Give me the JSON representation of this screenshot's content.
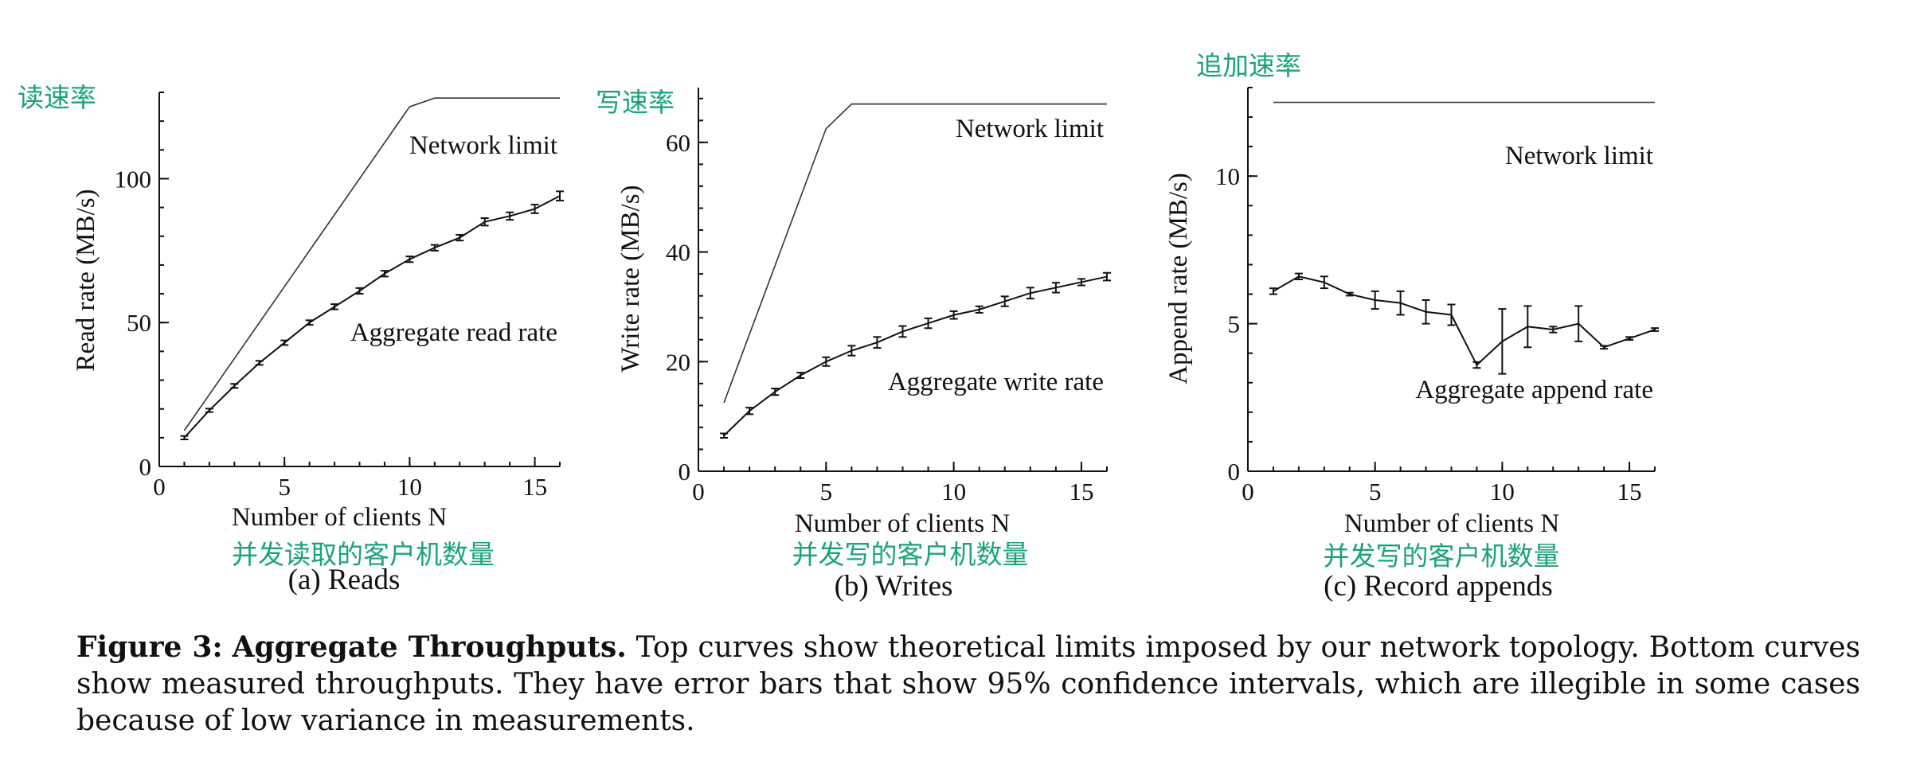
{
  "annotation_color": "#1aa37a",
  "caption": {
    "label": "Figure 3:",
    "title": "Aggregate Throughputs.",
    "body": "Top curves show theoretical limits imposed by our network topology. Bottom curves show measured throughputs. They have error bars that show 95% confidence intervals, which are illegible in some cases because of low variance in measurements."
  },
  "chart_data": [
    {
      "type": "line",
      "subcaption": "(a) Reads",
      "xlabel": "Number of clients N",
      "ylabel": "Read rate (MB/s)",
      "annotation_y": "读速率",
      "annotation_x": "并发读取的客户机数量",
      "xlim": [
        0,
        16
      ],
      "ylim": [
        0,
        130
      ],
      "xticks": [
        0,
        5,
        10,
        15
      ],
      "yticks": [
        0,
        50,
        100
      ],
      "limit_label": "Network limit",
      "measured_label": "Aggregate read rate",
      "limit": {
        "x": [
          1,
          10,
          11,
          16
        ],
        "y": [
          12.5,
          125,
          128,
          128
        ]
      },
      "measured": {
        "x": [
          1,
          2,
          3,
          4,
          5,
          6,
          7,
          8,
          9,
          10,
          11,
          12,
          13,
          14,
          15,
          16
        ],
        "y": [
          10,
          19.5,
          28,
          36,
          43,
          50,
          55.5,
          61,
          67,
          72,
          76,
          79.5,
          85,
          87,
          89.5,
          94
        ],
        "err": [
          0.6,
          0.6,
          0.7,
          0.7,
          0.8,
          0.8,
          0.9,
          1,
          1,
          1,
          1,
          1,
          1.3,
          1.3,
          1.5,
          1.6
        ]
      }
    },
    {
      "type": "line",
      "subcaption": "(b) Writes",
      "xlabel": "Number of clients N",
      "ylabel": "Write rate (MB/s)",
      "annotation_y": "写速率",
      "annotation_x": "并发写的客户机数量",
      "xlim": [
        0,
        16
      ],
      "ylim": [
        0,
        70
      ],
      "xticks": [
        0,
        5,
        10,
        15
      ],
      "yticks": [
        0,
        20,
        40,
        60
      ],
      "limit_label": "Network limit",
      "measured_label": "Aggregate write rate",
      "limit": {
        "x": [
          1,
          5,
          6,
          16
        ],
        "y": [
          12.5,
          62.5,
          67,
          67
        ]
      },
      "measured": {
        "x": [
          1,
          2,
          3,
          4,
          5,
          6,
          7,
          8,
          9,
          10,
          11,
          12,
          13,
          14,
          15,
          16
        ],
        "y": [
          6.5,
          11,
          14.5,
          17.5,
          20,
          22,
          23.5,
          25.5,
          27,
          28.5,
          29.5,
          31,
          32.5,
          33.5,
          34.5,
          35.5
        ],
        "err": [
          0.4,
          0.6,
          0.6,
          0.5,
          0.8,
          0.9,
          1,
          1,
          0.9,
          0.7,
          0.6,
          0.9,
          1,
          0.9,
          0.6,
          0.7
        ]
      }
    },
    {
      "type": "line",
      "subcaption": "(c) Record appends",
      "xlabel": "Number of clients N",
      "ylabel": "Append rate (MB/s)",
      "annotation_y": "追加速率",
      "annotation_x": "并发写的客户机数量",
      "xlim": [
        0,
        16
      ],
      "ylim": [
        0,
        13
      ],
      "xticks": [
        0,
        5,
        10,
        15
      ],
      "yticks": [
        0,
        5,
        10
      ],
      "limit_label": "Network limit",
      "measured_label": "Aggregate append rate",
      "limit": {
        "x": [
          1,
          16
        ],
        "y": [
          12.5,
          12.5
        ]
      },
      "measured": {
        "x": [
          1,
          2,
          3,
          4,
          5,
          6,
          7,
          8,
          9,
          10,
          11,
          12,
          13,
          14,
          15,
          16
        ],
        "y": [
          6.1,
          6.6,
          6.4,
          6.0,
          5.8,
          5.7,
          5.4,
          5.3,
          3.6,
          4.4,
          4.9,
          4.8,
          5.0,
          4.2,
          4.5,
          4.8
        ],
        "err": [
          0.1,
          0.1,
          0.2,
          0.05,
          0.3,
          0.4,
          0.4,
          0.35,
          0.1,
          1.1,
          0.7,
          0.1,
          0.6,
          0.05,
          0.05,
          0.05
        ]
      }
    }
  ]
}
